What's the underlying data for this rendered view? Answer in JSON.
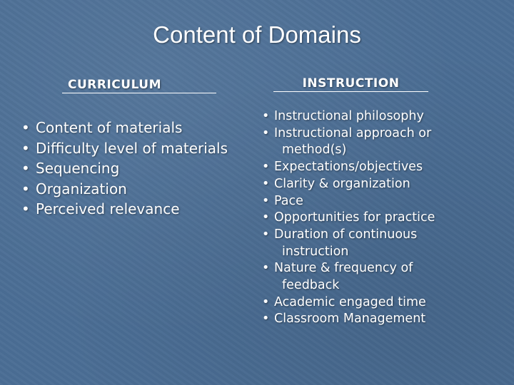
{
  "title": "Content of Domains",
  "columns": [
    {
      "header": "CURRICULUM",
      "items": [
        "Content of materials",
        "Difficulty level of materials",
        "Sequencing",
        "Organization",
        "Perceived relevance"
      ]
    },
    {
      "header": "INSTRUCTION",
      "items": [
        "Instructional philosophy",
        "Instructional approach or method(s)",
        "Expectations/objectives",
        "Clarity & organization",
        "Pace",
        "Opportunities for practice",
        "Duration of continuous instruction",
        "Nature & frequency of feedback",
        "Academic engaged time",
        "Classroom Management"
      ]
    }
  ]
}
